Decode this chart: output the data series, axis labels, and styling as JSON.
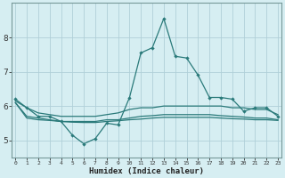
{
  "xlabel": "Humidex (Indice chaleur)",
  "bg_color": "#d6eef2",
  "grid_color": "#b0d0d8",
  "line_color": "#2a7a7a",
  "x": [
    0,
    1,
    2,
    3,
    4,
    5,
    6,
    7,
    8,
    9,
    10,
    11,
    12,
    13,
    14,
    15,
    16,
    17,
    18,
    19,
    20,
    21,
    22,
    23
  ],
  "line1": [
    6.2,
    5.95,
    5.7,
    5.7,
    5.55,
    5.15,
    4.9,
    5.05,
    5.5,
    5.45,
    6.25,
    7.55,
    7.7,
    8.55,
    7.45,
    7.4,
    6.9,
    6.25,
    6.25,
    6.2,
    5.85,
    5.95,
    5.95,
    5.7
  ],
  "line2": [
    6.15,
    5.95,
    5.8,
    5.75,
    5.7,
    5.7,
    5.7,
    5.7,
    5.75,
    5.8,
    5.9,
    5.95,
    5.95,
    6.0,
    6.0,
    6.0,
    6.0,
    6.0,
    6.0,
    5.95,
    5.95,
    5.9,
    5.9,
    5.75
  ],
  "line3": [
    6.1,
    5.7,
    5.65,
    5.6,
    5.55,
    5.55,
    5.55,
    5.55,
    5.6,
    5.6,
    5.65,
    5.7,
    5.72,
    5.75,
    5.75,
    5.75,
    5.75,
    5.75,
    5.72,
    5.7,
    5.68,
    5.65,
    5.65,
    5.6
  ],
  "line4": [
    6.1,
    5.65,
    5.6,
    5.58,
    5.55,
    5.53,
    5.52,
    5.52,
    5.55,
    5.57,
    5.6,
    5.62,
    5.65,
    5.67,
    5.67,
    5.67,
    5.67,
    5.67,
    5.65,
    5.63,
    5.62,
    5.6,
    5.6,
    5.58
  ],
  "ylim": [
    4.5,
    9.0
  ],
  "yticks": [
    5,
    6,
    7,
    8
  ],
  "xtick_labels": [
    "0",
    "1",
    "2",
    "3",
    "4",
    "5",
    "6",
    "7",
    "8",
    "9",
    "10",
    "11",
    "12",
    "13",
    "14",
    "15",
    "16",
    "17",
    "18",
    "19",
    "20",
    "21",
    "22",
    "23"
  ],
  "xlim": [
    -0.3,
    23.3
  ]
}
